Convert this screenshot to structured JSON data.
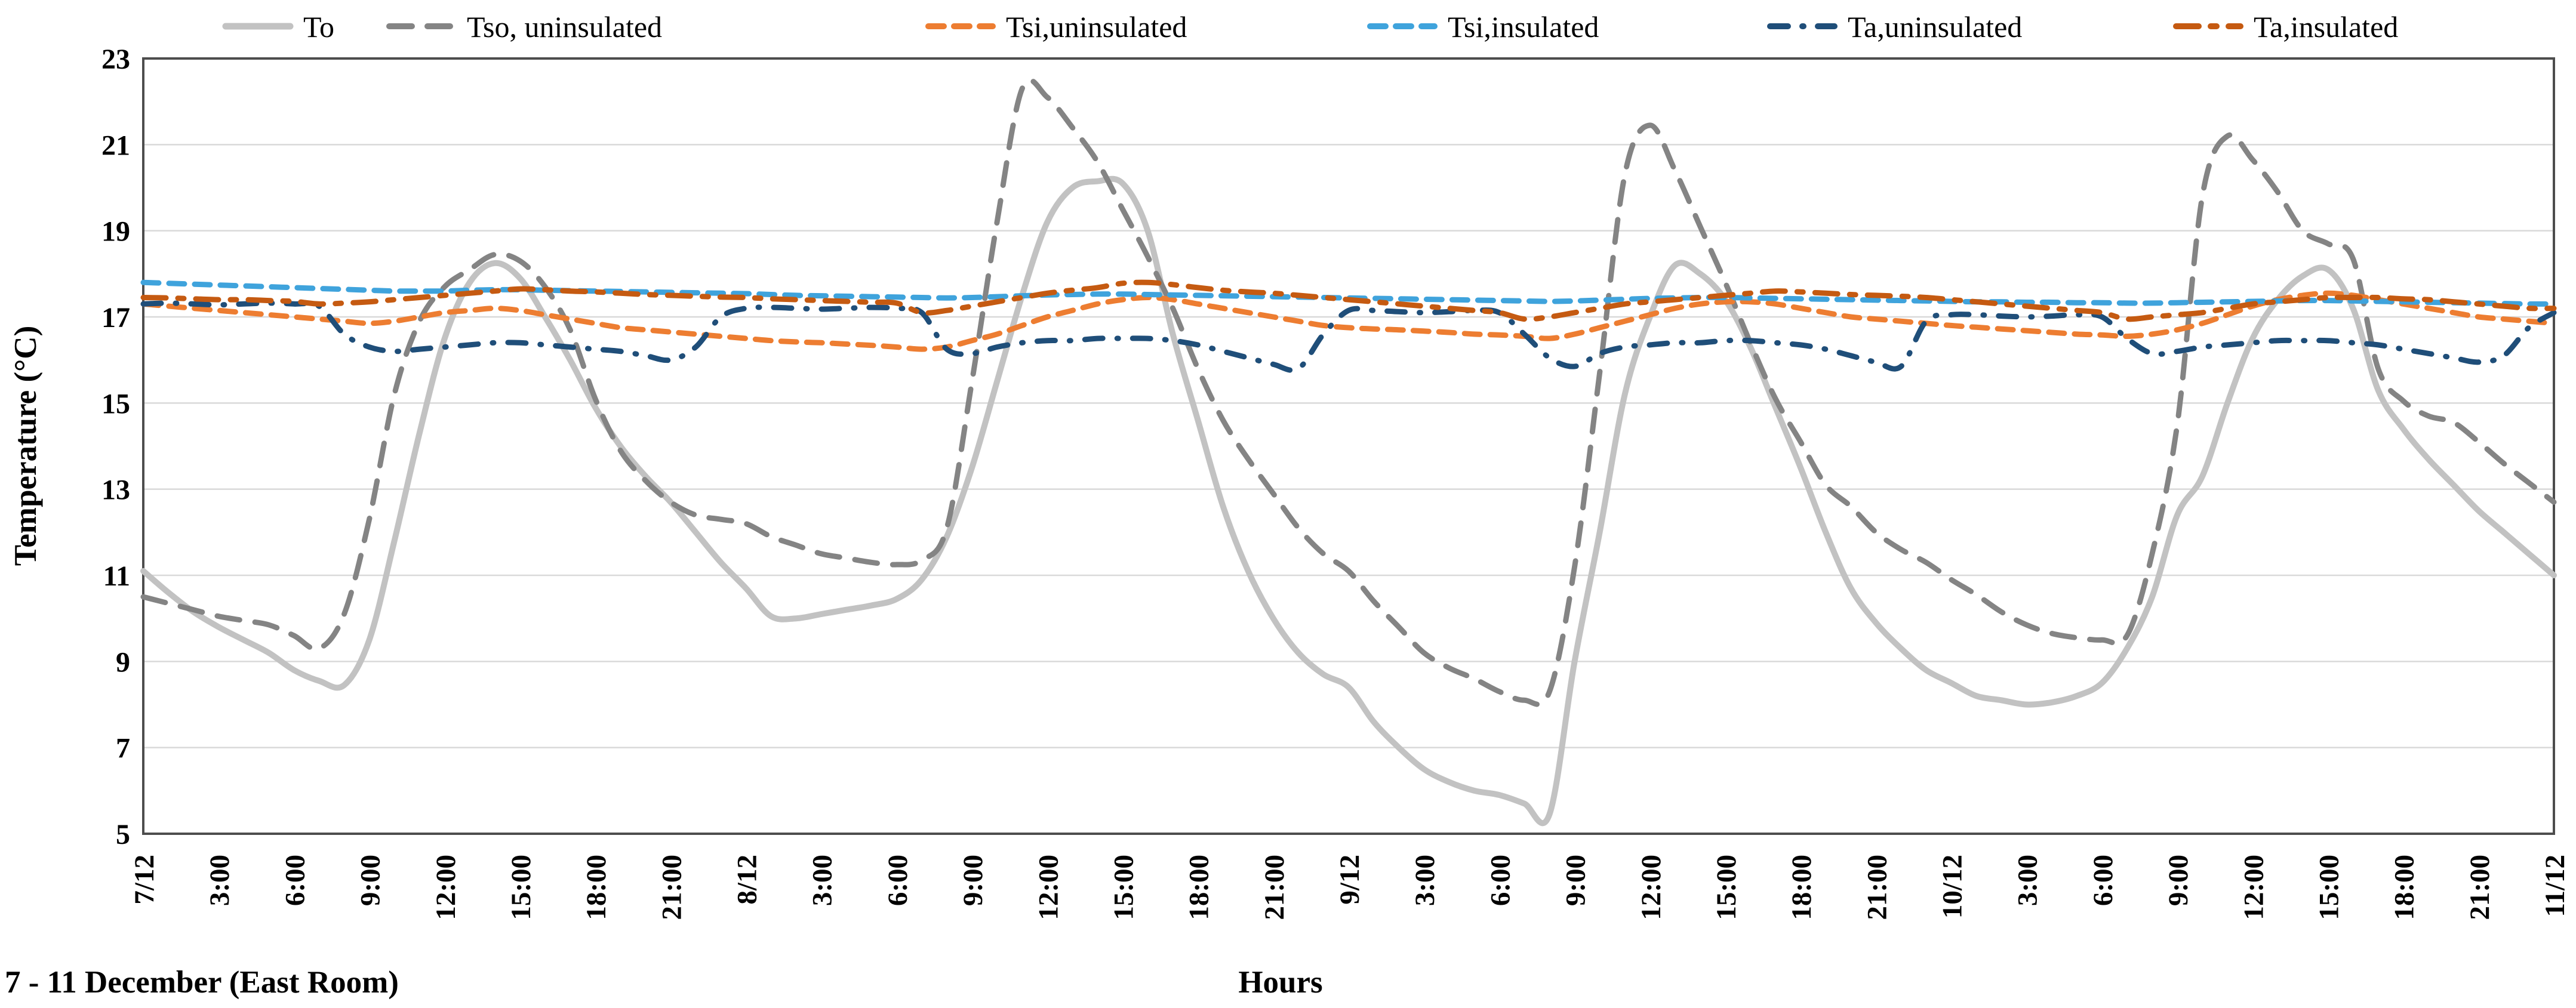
{
  "chart_data": {
    "type": "line",
    "title": "",
    "xlabel": "Hours",
    "ylabel": "Temperature (°C)",
    "caption": "7 - 11 December (East Room)",
    "ylim": [
      5,
      23
    ],
    "yticks": [
      5,
      7,
      9,
      11,
      13,
      15,
      17,
      19,
      21,
      23
    ],
    "x_hours_range": [
      0,
      96
    ],
    "x_tick_interval_hours": 3,
    "x_tick_labels": [
      "7/12",
      "3:00",
      "6:00",
      "9:00",
      "12:00",
      "15:00",
      "18:00",
      "21:00",
      "8/12",
      "3:00",
      "6:00",
      "9:00",
      "12:00",
      "15:00",
      "18:00",
      "21:00",
      "9/12",
      "3:00",
      "6:00",
      "9:00",
      "12:00",
      "15:00",
      "18:00",
      "21:00",
      "10/12",
      "3:00",
      "6:00",
      "9:00",
      "12:00",
      "15:00",
      "18:00",
      "21:00",
      "11/12"
    ],
    "grid": "horizontal",
    "legend_position": "top",
    "colors": {
      "grid": "#D9D9D9",
      "border": "#4D4D4D",
      "text": "#000000"
    },
    "series": [
      {
        "name": "To",
        "color": "#C2C2C2",
        "style": "solid",
        "width": 10,
        "values": [
          11.1,
          10.6,
          10.15,
          9.8,
          9.5,
          9.2,
          8.8,
          8.55,
          8.45,
          9.5,
          11.8,
          14.3,
          16.5,
          17.8,
          18.25,
          17.9,
          17.0,
          16.0,
          14.9,
          14.0,
          13.3,
          12.7,
          12.0,
          11.3,
          10.7,
          10.05,
          10.0,
          10.1,
          10.2,
          10.3,
          10.45,
          10.9,
          11.9,
          13.5,
          15.5,
          17.5,
          19.2,
          20.0,
          20.15,
          20.1,
          19.0,
          16.6,
          14.6,
          12.6,
          11.1,
          10.0,
          9.2,
          8.7,
          8.4,
          7.6,
          7.0,
          6.5,
          6.2,
          6.0,
          5.9,
          5.7,
          5.45,
          9.0,
          12.0,
          15.2,
          17.0,
          18.2,
          18.0,
          17.4,
          16.3,
          14.9,
          13.5,
          12.0,
          10.7,
          9.9,
          9.3,
          8.8,
          8.5,
          8.2,
          8.1,
          8.0,
          8.05,
          8.2,
          8.5,
          9.3,
          10.5,
          12.4,
          13.3,
          15.0,
          16.5,
          17.4,
          17.95,
          18.1,
          17.2,
          15.3,
          14.4,
          13.7,
          13.1,
          12.5,
          12.0,
          11.5,
          11.0
        ]
      },
      {
        "name": "Tso, uninsulated",
        "color": "#848484",
        "style": "dashed",
        "width": 9,
        "values": [
          10.5,
          10.35,
          10.2,
          10.05,
          9.95,
          9.85,
          9.6,
          9.3,
          10.1,
          12.3,
          15.2,
          16.9,
          17.7,
          18.1,
          18.45,
          18.3,
          17.7,
          16.7,
          15.1,
          13.9,
          13.2,
          12.7,
          12.4,
          12.3,
          12.2,
          11.9,
          11.7,
          11.5,
          11.4,
          11.3,
          11.25,
          11.35,
          12.1,
          15.5,
          19.2,
          22.3,
          22.1,
          21.4,
          20.6,
          19.5,
          18.4,
          17.2,
          15.8,
          14.6,
          13.7,
          12.9,
          12.1,
          11.5,
          11.1,
          10.4,
          9.8,
          9.2,
          8.85,
          8.6,
          8.3,
          8.1,
          8.3,
          11.2,
          15.7,
          20.3,
          21.45,
          20.4,
          19.1,
          17.8,
          16.4,
          15.1,
          14.1,
          13.1,
          12.6,
          12.0,
          11.6,
          11.3,
          10.9,
          10.55,
          10.15,
          9.85,
          9.65,
          9.55,
          9.5,
          9.6,
          11.5,
          14.5,
          19.8,
          21.2,
          20.65,
          19.9,
          19.0,
          18.7,
          18.35,
          15.8,
          15.05,
          14.7,
          14.55,
          14.1,
          13.6,
          13.15,
          12.7
        ]
      },
      {
        "name": "Tsi,uninsulated",
        "color": "#ED7D31",
        "style": "dashed",
        "width": 9,
        "values": [
          17.3,
          17.25,
          17.2,
          17.15,
          17.1,
          17.05,
          17.0,
          16.95,
          16.9,
          16.85,
          16.9,
          17.0,
          17.1,
          17.15,
          17.2,
          17.15,
          17.05,
          16.95,
          16.85,
          16.75,
          16.7,
          16.65,
          16.6,
          16.55,
          16.5,
          16.45,
          16.42,
          16.4,
          16.37,
          16.34,
          16.3,
          16.25,
          16.3,
          16.45,
          16.6,
          16.8,
          17.0,
          17.15,
          17.3,
          17.4,
          17.45,
          17.4,
          17.3,
          17.2,
          17.1,
          17.0,
          16.9,
          16.8,
          16.75,
          16.72,
          16.7,
          16.67,
          16.64,
          16.6,
          16.58,
          16.55,
          16.5,
          16.6,
          16.75,
          16.9,
          17.05,
          17.2,
          17.3,
          17.35,
          17.35,
          17.3,
          17.2,
          17.1,
          17.0,
          16.95,
          16.9,
          16.85,
          16.8,
          16.76,
          16.72,
          16.68,
          16.64,
          16.6,
          16.58,
          16.55,
          16.6,
          16.7,
          16.85,
          17.05,
          17.25,
          17.4,
          17.5,
          17.55,
          17.5,
          17.4,
          17.3,
          17.2,
          17.1,
          17.0,
          16.95,
          16.9,
          16.85
        ]
      },
      {
        "name": "Tsi,insulated",
        "color": "#3FA3DC",
        "style": "dashed",
        "width": 9,
        "values": [
          17.8,
          17.78,
          17.76,
          17.74,
          17.72,
          17.7,
          17.68,
          17.66,
          17.64,
          17.62,
          17.6,
          17.6,
          17.6,
          17.62,
          17.63,
          17.63,
          17.62,
          17.61,
          17.6,
          17.59,
          17.58,
          17.57,
          17.56,
          17.55,
          17.54,
          17.52,
          17.5,
          17.49,
          17.48,
          17.47,
          17.46,
          17.45,
          17.44,
          17.45,
          17.47,
          17.49,
          17.51,
          17.52,
          17.53,
          17.53,
          17.52,
          17.51,
          17.5,
          17.49,
          17.48,
          17.47,
          17.46,
          17.45,
          17.44,
          17.43,
          17.42,
          17.41,
          17.4,
          17.39,
          17.38,
          17.37,
          17.36,
          17.37,
          17.39,
          17.41,
          17.43,
          17.44,
          17.45,
          17.45,
          17.44,
          17.43,
          17.42,
          17.41,
          17.4,
          17.39,
          17.38,
          17.37,
          17.36,
          17.35,
          17.35,
          17.34,
          17.34,
          17.33,
          17.33,
          17.32,
          17.32,
          17.33,
          17.34,
          17.35,
          17.36,
          17.37,
          17.38,
          17.38,
          17.37,
          17.36,
          17.35,
          17.34,
          17.33,
          17.32,
          17.31,
          17.3,
          17.3
        ]
      },
      {
        "name": "Ta,uninsulated",
        "color": "#1F4E79",
        "style": "dash-dot",
        "width": 9,
        "values": [
          17.3,
          17.32,
          17.3,
          17.28,
          17.3,
          17.32,
          17.3,
          17.25,
          16.6,
          16.3,
          16.2,
          16.25,
          16.3,
          16.35,
          16.4,
          16.4,
          16.35,
          16.3,
          16.25,
          16.2,
          16.1,
          16.0,
          16.3,
          17.0,
          17.2,
          17.22,
          17.2,
          17.18,
          17.2,
          17.22,
          17.2,
          17.1,
          16.25,
          16.15,
          16.3,
          16.4,
          16.45,
          16.45,
          16.5,
          16.5,
          16.5,
          16.45,
          16.35,
          16.2,
          16.05,
          15.9,
          15.8,
          16.6,
          17.15,
          17.15,
          17.12,
          17.1,
          17.12,
          17.15,
          17.1,
          16.6,
          16.05,
          15.85,
          16.15,
          16.3,
          16.35,
          16.4,
          16.4,
          16.45,
          16.45,
          16.4,
          16.35,
          16.25,
          16.1,
          15.95,
          15.85,
          16.9,
          17.05,
          17.05,
          17.02,
          17.0,
          17.02,
          17.05,
          17.0,
          16.5,
          16.15,
          16.2,
          16.3,
          16.35,
          16.4,
          16.45,
          16.45,
          16.45,
          16.4,
          16.35,
          16.25,
          16.15,
          16.05,
          15.95,
          16.1,
          16.75,
          17.1
        ]
      },
      {
        "name": "Ta,insulated",
        "color": "#C55A11",
        "style": "dash-dot",
        "width": 9,
        "values": [
          17.45,
          17.44,
          17.42,
          17.4,
          17.4,
          17.38,
          17.36,
          17.3,
          17.32,
          17.35,
          17.4,
          17.45,
          17.5,
          17.55,
          17.6,
          17.65,
          17.63,
          17.6,
          17.58,
          17.55,
          17.52,
          17.5,
          17.48,
          17.46,
          17.45,
          17.42,
          17.4,
          17.38,
          17.36,
          17.34,
          17.32,
          17.1,
          17.15,
          17.25,
          17.35,
          17.45,
          17.55,
          17.62,
          17.68,
          17.78,
          17.8,
          17.75,
          17.68,
          17.62,
          17.58,
          17.55,
          17.5,
          17.45,
          17.4,
          17.35,
          17.3,
          17.25,
          17.2,
          17.15,
          17.1,
          16.95,
          17.0,
          17.1,
          17.2,
          17.3,
          17.35,
          17.4,
          17.45,
          17.5,
          17.55,
          17.6,
          17.58,
          17.55,
          17.52,
          17.5,
          17.48,
          17.45,
          17.4,
          17.35,
          17.3,
          17.25,
          17.2,
          17.15,
          17.1,
          16.95,
          17.0,
          17.05,
          17.1,
          17.2,
          17.3,
          17.35,
          17.4,
          17.45,
          17.45,
          17.45,
          17.42,
          17.4,
          17.35,
          17.3,
          17.25,
          17.2,
          17.2
        ]
      }
    ]
  }
}
